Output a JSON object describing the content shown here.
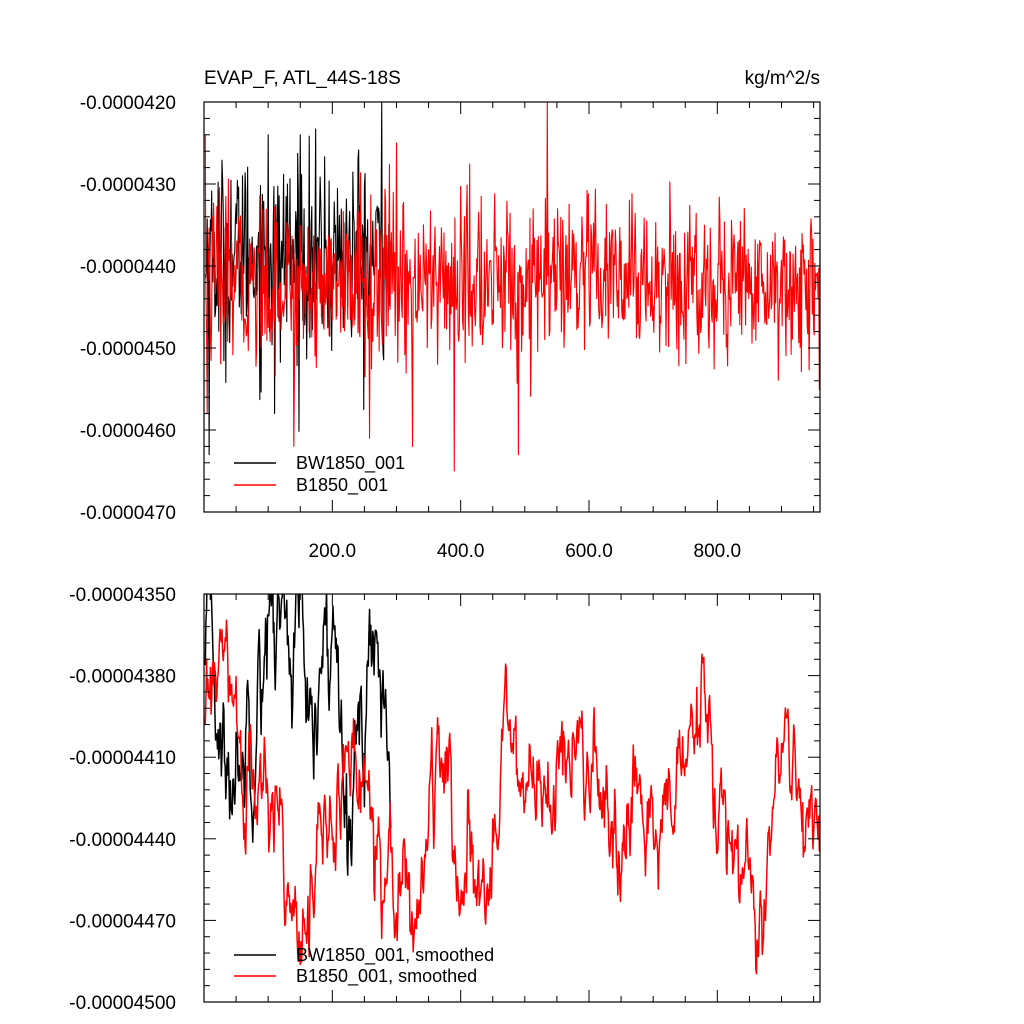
{
  "colors": {
    "BW1850_001": "#000000",
    "B1850_001": "#ff0000",
    "frame": "#000000"
  },
  "chart_data": [
    {
      "type": "line",
      "title": "EVAP_F, ATL_44S-18S",
      "units": "kg/m^2/s",
      "xlim": [
        0,
        960
      ],
      "ylim": [
        -4.7e-05,
        -4.2e-05
      ],
      "y_ticks": [
        -4.2e-05,
        -4.3e-05,
        -4.4e-05,
        -4.5e-05,
        -4.6e-05,
        -4.7e-05
      ],
      "y_tick_labels": [
        "-0.0000420",
        "-0.0000430",
        "-0.0000440",
        "-0.0000450",
        "-0.0000460",
        "-0.0000470"
      ],
      "x_ticks": [
        200,
        400,
        600,
        800
      ],
      "x_tick_labels": [
        "200.0",
        "400.0",
        "600.0",
        "800.0"
      ],
      "legend_position": "bottom-left",
      "series": [
        {
          "name": "BW1850_001",
          "color": "#000000",
          "n": 290,
          "mean": -4.39e-05,
          "spread": 1.1e-06,
          "points": [
            [
              2,
              -4.41e-05
            ],
            [
              8,
              -4.63e-05
            ],
            [
              55,
              -4.45e-05
            ],
            [
              60,
              -4.29e-05
            ],
            [
              100,
              -4.24e-05
            ],
            [
              110,
              -4.58e-05
            ],
            [
              130,
              -4.3e-05
            ],
            [
              140,
              -4.42e-05
            ],
            [
              150,
              -4.24e-05
            ],
            [
              240,
              -4.27e-05
            ],
            [
              277,
              -4.2e-05
            ],
            [
              290,
              -4.38e-05
            ]
          ]
        },
        {
          "name": "B1850_001",
          "color": "#ff0000",
          "n": 960,
          "mean": -4.42e-05,
          "spread": 9e-07,
          "points": [
            [
              2,
              -4.24e-05
            ],
            [
              5,
              -4.58e-05
            ],
            [
              140,
              -4.62e-05
            ],
            [
              258,
              -4.61e-05
            ],
            [
              300,
              -4.25e-05
            ],
            [
              325,
              -4.62e-05
            ],
            [
              390,
              -4.65e-05
            ],
            [
              490,
              -4.63e-05
            ],
            [
              535,
              -4.2e-05
            ],
            [
              960,
              -4.37e-05
            ]
          ]
        }
      ]
    },
    {
      "type": "line",
      "title": "",
      "xlim": [
        0,
        960
      ],
      "ylim": [
        -4.5e-05,
        -4.35e-05
      ],
      "y_ticks": [
        -4.35e-05,
        -4.38e-05,
        -4.41e-05,
        -4.44e-05,
        -4.47e-05,
        -4.5e-05
      ],
      "y_tick_labels": [
        "-0.00004350",
        "-0.00004380",
        "-0.00004410",
        "-0.00004440",
        "-0.00004470",
        "-0.00004500"
      ],
      "x_ticks": [
        200,
        400,
        600,
        800
      ],
      "x_tick_labels": [],
      "legend_position": "bottom-left",
      "series": [
        {
          "name": "BW1850_001, smoothed",
          "color": "#000000",
          "n": 290,
          "mean": -4.4e-05,
          "spread": 1e-07,
          "points": [
            [
              2,
              -4.383e-05
            ],
            [
              12,
              -4.365e-05
            ],
            [
              35,
              -4.425e-05
            ],
            [
              60,
              -4.4e-05
            ],
            [
              97,
              -4.355e-05
            ],
            [
              150,
              -4.365e-05
            ],
            [
              170,
              -4.43e-05
            ],
            [
              185,
              -4.375e-05
            ],
            [
              220,
              -4.37e-05
            ],
            [
              230,
              -4.42e-05
            ],
            [
              265,
              -4.365e-05
            ],
            [
              290,
              -4.405e-05
            ]
          ]
        },
        {
          "name": "B1850_001, smoothed",
          "color": "#ff0000",
          "n": 960,
          "mean": -4.43e-05,
          "spread": 8e-08,
          "points": [
            [
              2,
              -4.4e-05
            ],
            [
              25,
              -4.375e-05
            ],
            [
              60,
              -4.415e-05
            ],
            [
              165,
              -4.46e-05
            ],
            [
              240,
              -4.41e-05
            ],
            [
              328,
              -4.468e-05
            ],
            [
              360,
              -4.415e-05
            ],
            [
              430,
              -4.48e-05
            ],
            [
              470,
              -4.38e-05
            ],
            [
              480,
              -4.42e-05
            ],
            [
              530,
              -4.42e-05
            ],
            [
              615,
              -4.415e-05
            ],
            [
              630,
              -4.46e-05
            ],
            [
              775,
              -4.405e-05
            ],
            [
              870,
              -4.478e-05
            ],
            [
              900,
              -4.415e-05
            ],
            [
              960,
              -4.438e-05
            ]
          ]
        }
      ]
    }
  ]
}
